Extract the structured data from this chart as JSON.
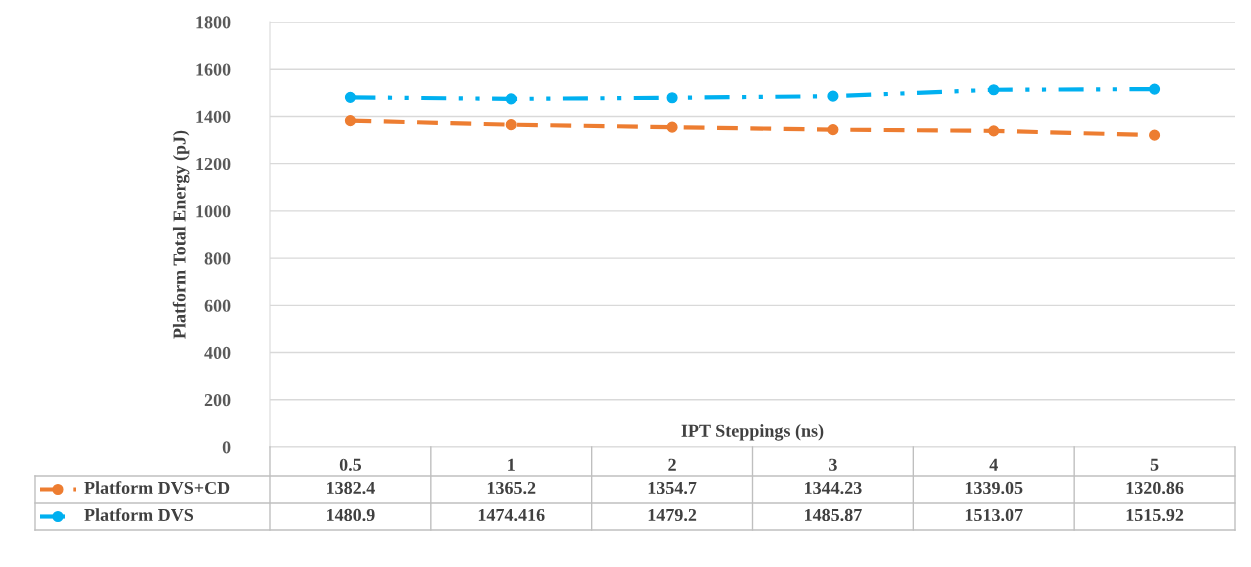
{
  "chart_data": {
    "type": "line",
    "ylabel": "Platform Total Energy (pJ)",
    "xlabel": "IPT Steppings (ns)",
    "categories": [
      "0.5",
      "1",
      "2",
      "3",
      "4",
      "5"
    ],
    "series": [
      {
        "name": "Platform DVS+CD",
        "color": "#ed7d31",
        "line_style": "dashed",
        "values": [
          1382.4,
          1365.2,
          1354.7,
          1344.23,
          1339.05,
          1320.86
        ]
      },
      {
        "name": "Platform DVS",
        "color": "#00b0f0",
        "line_style": "dashdot",
        "values": [
          1480.9,
          1474.416,
          1479.2,
          1485.87,
          1513.07,
          1515.92
        ]
      }
    ],
    "ylim": [
      0,
      1800
    ],
    "yticks": [
      0,
      200,
      400,
      600,
      800,
      1000,
      1200,
      1400,
      1600,
      1800
    ],
    "grid": "y",
    "marker": "circle",
    "data_labels": true,
    "legend": "bottom"
  }
}
